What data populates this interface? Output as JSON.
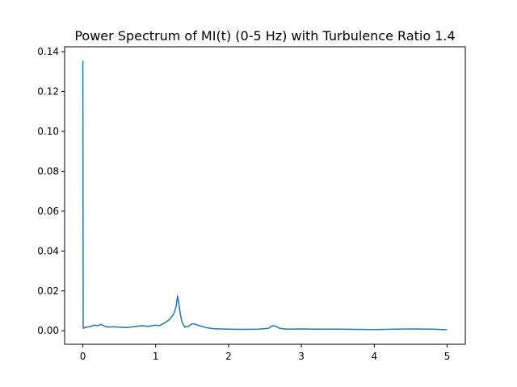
{
  "chart_data": {
    "type": "line",
    "title": "Power Spectrum of MI(t) (0-5 Hz) with Turbulence Ratio 1.4",
    "xlabel": "",
    "ylabel": "",
    "xlim": [
      -0.25,
      5.25
    ],
    "ylim": [
      -0.0068,
      0.1425
    ],
    "xticks": [
      0,
      1,
      2,
      3,
      4,
      5
    ],
    "yticks": [
      0.0,
      0.02,
      0.04,
      0.06,
      0.08,
      0.1,
      0.12,
      0.14
    ],
    "xtick_labels": [
      "0",
      "1",
      "2",
      "3",
      "4",
      "5"
    ],
    "ytick_labels": [
      "0.00",
      "0.02",
      "0.04",
      "0.06",
      "0.08",
      "0.10",
      "0.12",
      "0.14"
    ],
    "grid": false,
    "legend": "none",
    "series": [
      {
        "color": "#1f77b4",
        "x": [
          0.0,
          0.005,
          0.01,
          0.02,
          0.05,
          0.1,
          0.15,
          0.2,
          0.25,
          0.3,
          0.35,
          0.4,
          0.5,
          0.6,
          0.7,
          0.8,
          0.9,
          1.0,
          1.05,
          1.1,
          1.15,
          1.2,
          1.25,
          1.28,
          1.3,
          1.32,
          1.34,
          1.36,
          1.4,
          1.45,
          1.5,
          1.55,
          1.6,
          1.7,
          1.8,
          1.9,
          2.0,
          2.2,
          2.4,
          2.55,
          2.6,
          2.65,
          2.7,
          2.8,
          3.0,
          3.2,
          3.5,
          4.0,
          4.3,
          4.5,
          4.8,
          5.0
        ],
        "y": [
          0.1355,
          0.0015,
          0.0012,
          0.0015,
          0.0018,
          0.002,
          0.0028,
          0.0025,
          0.0032,
          0.0022,
          0.0018,
          0.002,
          0.0018,
          0.0016,
          0.002,
          0.0025,
          0.0022,
          0.0028,
          0.0025,
          0.0035,
          0.0045,
          0.006,
          0.0085,
          0.012,
          0.0175,
          0.013,
          0.008,
          0.0045,
          0.0018,
          0.0022,
          0.0035,
          0.0032,
          0.0025,
          0.0015,
          0.001,
          0.0009,
          0.0008,
          0.0007,
          0.0008,
          0.0012,
          0.0025,
          0.0022,
          0.0012,
          0.0008,
          0.0009,
          0.0008,
          0.0008,
          0.0006,
          0.0008,
          0.0009,
          0.0008,
          0.0005
        ]
      }
    ]
  }
}
